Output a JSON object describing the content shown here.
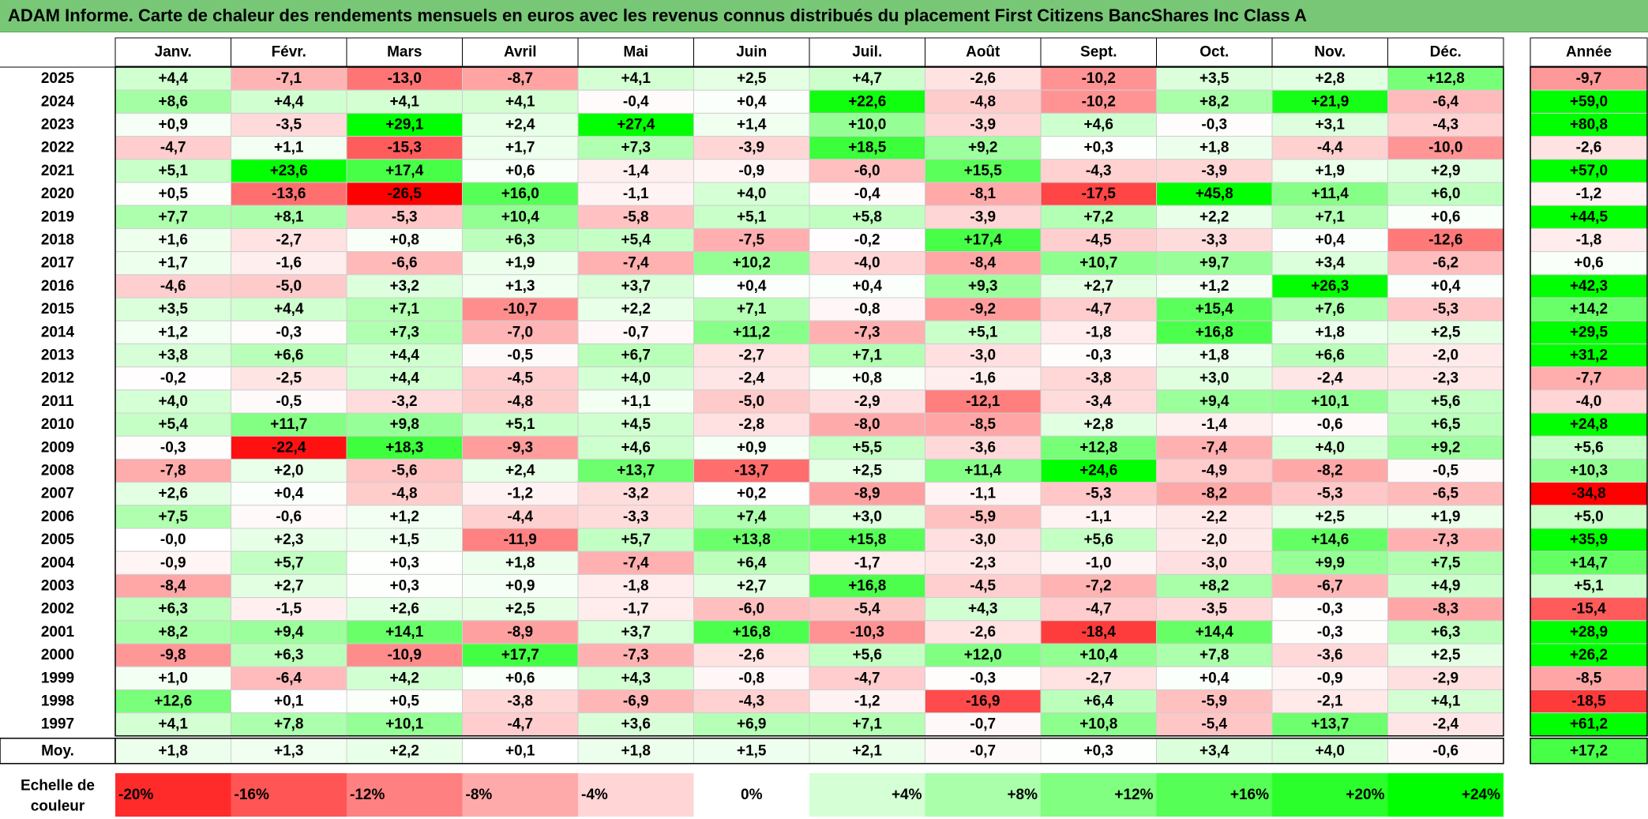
{
  "chart_data": {
    "type": "heatmap",
    "title": "ADAM Informe. Carte de chaleur des rendements mensuels en euros avec les revenus connus distribués du placement First Citizens BancShares Inc Class A",
    "months": [
      "Janv.",
      "Févr.",
      "Mars",
      "Avril",
      "Mai",
      "Juin",
      "Juil.",
      "Août",
      "Sept.",
      "Oct.",
      "Nov.",
      "Déc."
    ],
    "year_column_label": "Année",
    "rows": [
      {
        "year": "2025",
        "values": [
          "+4,4",
          "-7,1",
          "-13,0",
          "-8,7",
          "+4,1",
          "+2,5",
          "+4,7",
          "-2,6",
          "-10,2",
          "+3,5",
          "+2,8",
          "+12,8"
        ],
        "annual": "-9,7"
      },
      {
        "year": "2024",
        "values": [
          "+8,6",
          "+4,4",
          "+4,1",
          "+4,1",
          "-0,4",
          "+0,4",
          "+22,6",
          "-4,8",
          "-10,2",
          "+8,2",
          "+21,9",
          "-6,4"
        ],
        "annual": "+59,0"
      },
      {
        "year": "2023",
        "values": [
          "+0,9",
          "-3,5",
          "+29,1",
          "+2,4",
          "+27,4",
          "+1,4",
          "+10,0",
          "-3,9",
          "+4,6",
          "-0,3",
          "+3,1",
          "-4,3"
        ],
        "annual": "+80,8"
      },
      {
        "year": "2022",
        "values": [
          "-4,7",
          "+1,1",
          "-15,3",
          "+1,7",
          "+7,3",
          "-3,9",
          "+18,5",
          "+9,2",
          "+0,3",
          "+1,8",
          "-4,4",
          "-10,0"
        ],
        "annual": "-2,6"
      },
      {
        "year": "2021",
        "values": [
          "+5,1",
          "+23,6",
          "+17,4",
          "+0,6",
          "-1,4",
          "-0,9",
          "-6,0",
          "+15,5",
          "-4,3",
          "-3,9",
          "+1,9",
          "+2,9"
        ],
        "annual": "+57,0"
      },
      {
        "year": "2020",
        "values": [
          "+0,5",
          "-13,6",
          "-26,5",
          "+16,0",
          "-1,1",
          "+4,0",
          "-0,4",
          "-8,1",
          "-17,5",
          "+45,8",
          "+11,4",
          "+6,0"
        ],
        "annual": "-1,2"
      },
      {
        "year": "2019",
        "values": [
          "+7,7",
          "+8,1",
          "-5,3",
          "+10,4",
          "-5,8",
          "+5,1",
          "+5,8",
          "-3,9",
          "+7,2",
          "+2,2",
          "+7,1",
          "+0,6"
        ],
        "annual": "+44,5"
      },
      {
        "year": "2018",
        "values": [
          "+1,6",
          "-2,7",
          "+0,8",
          "+6,3",
          "+5,4",
          "-7,5",
          "-0,2",
          "+17,4",
          "-4,5",
          "-3,3",
          "+0,4",
          "-12,6"
        ],
        "annual": "-1,8"
      },
      {
        "year": "2017",
        "values": [
          "+1,7",
          "-1,6",
          "-6,6",
          "+1,9",
          "-7,4",
          "+10,2",
          "-4,0",
          "-8,4",
          "+10,7",
          "+9,7",
          "+3,4",
          "-6,2"
        ],
        "annual": "+0,6"
      },
      {
        "year": "2016",
        "values": [
          "-4,6",
          "-5,0",
          "+3,2",
          "+1,3",
          "+3,7",
          "+0,4",
          "+0,4",
          "+9,3",
          "+2,7",
          "+1,2",
          "+26,3",
          "+0,4"
        ],
        "annual": "+42,3"
      },
      {
        "year": "2015",
        "values": [
          "+3,5",
          "+4,4",
          "+7,1",
          "-10,7",
          "+2,2",
          "+7,1",
          "-0,8",
          "-9,2",
          "-4,7",
          "+15,4",
          "+7,6",
          "-5,3"
        ],
        "annual": "+14,2"
      },
      {
        "year": "2014",
        "values": [
          "+1,2",
          "-0,3",
          "+7,3",
          "-7,0",
          "-0,7",
          "+11,2",
          "-7,3",
          "+5,1",
          "-1,8",
          "+16,8",
          "+1,8",
          "+2,5"
        ],
        "annual": "+29,5"
      },
      {
        "year": "2013",
        "values": [
          "+3,8",
          "+6,6",
          "+4,4",
          "-0,5",
          "+6,7",
          "-2,7",
          "+7,1",
          "-3,0",
          "-0,3",
          "+1,8",
          "+6,6",
          "-2,0"
        ],
        "annual": "+31,2"
      },
      {
        "year": "2012",
        "values": [
          "-0,2",
          "-2,5",
          "+4,4",
          "-4,5",
          "+4,0",
          "-2,4",
          "+0,8",
          "-1,6",
          "-3,8",
          "+3,0",
          "-2,4",
          "-2,3"
        ],
        "annual": "-7,7"
      },
      {
        "year": "2011",
        "values": [
          "+4,0",
          "-0,5",
          "-3,2",
          "-4,8",
          "+1,1",
          "-5,0",
          "-2,9",
          "-12,1",
          "-3,4",
          "+9,4",
          "+10,1",
          "+5,6"
        ],
        "annual": "-4,0"
      },
      {
        "year": "2010",
        "values": [
          "+5,4",
          "+11,7",
          "+9,8",
          "+5,1",
          "+4,5",
          "-2,8",
          "-8,0",
          "-8,5",
          "+2,8",
          "-1,4",
          "-0,6",
          "+6,5"
        ],
        "annual": "+24,8"
      },
      {
        "year": "2009",
        "values": [
          "-0,3",
          "-22,4",
          "+18,3",
          "-9,3",
          "+4,6",
          "+0,9",
          "+5,5",
          "-3,6",
          "+12,8",
          "-7,4",
          "+4,0",
          "+9,2"
        ],
        "annual": "+5,6"
      },
      {
        "year": "2008",
        "values": [
          "-7,8",
          "+2,0",
          "-5,6",
          "+2,4",
          "+13,7",
          "-13,7",
          "+2,5",
          "+11,4",
          "+24,6",
          "-4,9",
          "-8,2",
          "-0,5"
        ],
        "annual": "+10,3"
      },
      {
        "year": "2007",
        "values": [
          "+2,6",
          "+0,4",
          "-4,8",
          "-1,2",
          "-3,2",
          "+0,2",
          "-8,9",
          "-1,1",
          "-5,3",
          "-8,2",
          "-5,3",
          "-6,5"
        ],
        "annual": "-34,8"
      },
      {
        "year": "2006",
        "values": [
          "+7,5",
          "-0,6",
          "+1,2",
          "-4,4",
          "-3,3",
          "+7,4",
          "+3,0",
          "-5,9",
          "-1,1",
          "-2,2",
          "+2,5",
          "+1,9"
        ],
        "annual": "+5,0"
      },
      {
        "year": "2005",
        "values": [
          "-0,0",
          "+2,3",
          "+1,5",
          "-11,9",
          "+5,7",
          "+13,8",
          "+15,8",
          "-3,0",
          "+5,6",
          "-2,0",
          "+14,6",
          "-7,3"
        ],
        "annual": "+35,9"
      },
      {
        "year": "2004",
        "values": [
          "-0,9",
          "+5,7",
          "+0,3",
          "+1,8",
          "-7,4",
          "+6,4",
          "-1,7",
          "-2,3",
          "-1,0",
          "-3,0",
          "+9,9",
          "+7,5"
        ],
        "annual": "+14,7"
      },
      {
        "year": "2003",
        "values": [
          "-8,4",
          "+2,7",
          "+0,3",
          "+0,9",
          "-1,8",
          "+2,7",
          "+16,8",
          "-4,5",
          "-7,2",
          "+8,2",
          "-6,7",
          "+4,9"
        ],
        "annual": "+5,1"
      },
      {
        "year": "2002",
        "values": [
          "+6,3",
          "-1,5",
          "+2,6",
          "+2,5",
          "-1,7",
          "-6,0",
          "-5,4",
          "+4,3",
          "-4,7",
          "-3,5",
          "-0,3",
          "-8,3"
        ],
        "annual": "-15,4"
      },
      {
        "year": "2001",
        "values": [
          "+8,2",
          "+9,4",
          "+14,1",
          "-8,9",
          "+3,7",
          "+16,8",
          "-10,3",
          "-2,6",
          "-18,4",
          "+14,4",
          "-0,3",
          "+6,3"
        ],
        "annual": "+28,9"
      },
      {
        "year": "2000",
        "values": [
          "-9,8",
          "+6,3",
          "-10,9",
          "+17,7",
          "-7,3",
          "-2,6",
          "+5,6",
          "+12,0",
          "+10,4",
          "+7,8",
          "-3,6",
          "+2,5"
        ],
        "annual": "+26,2"
      },
      {
        "year": "1999",
        "values": [
          "+1,0",
          "-6,4",
          "+4,2",
          "+0,6",
          "+4,3",
          "-0,8",
          "-4,7",
          "-0,3",
          "-2,7",
          "+0,4",
          "-0,9",
          "-2,9"
        ],
        "annual": "-8,5"
      },
      {
        "year": "1998",
        "values": [
          "+12,6",
          "+0,1",
          "+0,5",
          "-3,8",
          "-6,9",
          "-4,3",
          "-1,2",
          "-16,9",
          "+6,4",
          "-5,9",
          "-2,1",
          "+4,1"
        ],
        "annual": "-18,5"
      },
      {
        "year": "1997",
        "values": [
          "+4,1",
          "+7,8",
          "+10,1",
          "-4,7",
          "+3,6",
          "+6,9",
          "+7,1",
          "-0,7",
          "+10,8",
          "-5,4",
          "+13,7",
          "-2,4"
        ],
        "annual": "+61,2"
      }
    ],
    "average": {
      "label": "Moy.",
      "values": [
        "+1,8",
        "+1,3",
        "+2,2",
        "+0,1",
        "+1,8",
        "+1,5",
        "+2,1",
        "-0,7",
        "+0,3",
        "+3,4",
        "+4,0",
        "-0,6"
      ],
      "annual": "+17,2"
    },
    "color_scale": {
      "label": "Echelle de couleur",
      "steps": [
        {
          "label": "-20%",
          "value": -20
        },
        {
          "label": "-16%",
          "value": -16
        },
        {
          "label": "-12%",
          "value": -12
        },
        {
          "label": "-8%",
          "value": -8
        },
        {
          "label": "-4%",
          "value": -4
        },
        {
          "label": "0%",
          "value": 0
        },
        {
          "label": "+4%",
          "value": 4
        },
        {
          "label": "+8%",
          "value": 8
        },
        {
          "label": "+12%",
          "value": 12
        },
        {
          "label": "+16%",
          "value": 16
        },
        {
          "label": "+20%",
          "value": 20
        },
        {
          "label": "+24%",
          "value": 24
        }
      ]
    },
    "colors": {
      "negative_max": "#ff0000",
      "positive_max": "#00ff00",
      "neutral": "#ffffff",
      "title_bar": "#77c777"
    }
  }
}
